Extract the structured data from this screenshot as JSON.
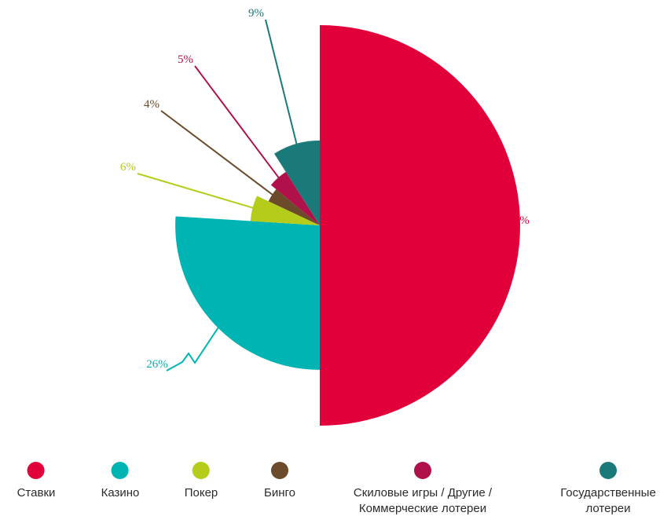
{
  "chart_data": {
    "type": "pie",
    "title": "",
    "series": [
      {
        "label": "Ставки",
        "value": 50,
        "value_label": "50%",
        "color": "#e2003b"
      },
      {
        "label": "Казино",
        "value": 26,
        "value_label": "26%",
        "color": "#00b4b4"
      },
      {
        "label": "Покер",
        "value": 6,
        "value_label": "6%",
        "color": "#b6cc1a"
      },
      {
        "label": "Бинго",
        "value": 4,
        "value_label": "4%",
        "color": "#6b4b2a"
      },
      {
        "label": "Скиловые игры / Другие / Коммерческие лотереи",
        "value": 5,
        "value_label": "5%",
        "color": "#b0114b"
      },
      {
        "label": "Государственные лотереи",
        "value": 9,
        "value_label": "9%",
        "color": "#1a7a7a"
      }
    ],
    "legend_position": "bottom"
  },
  "legend": [
    {
      "label": "Ставки",
      "color": "#e2003b"
    },
    {
      "label": "Казино",
      "color": "#00b4b4"
    },
    {
      "label": "Покер",
      "color": "#b6cc1a"
    },
    {
      "label": "Бинго",
      "color": "#6b4b2a"
    },
    {
      "label": "Скиловые игры / Другие / Коммерческие лотереи",
      "color": "#b0114b"
    },
    {
      "label": "Государственные лотереи",
      "color": "#1a7a7a"
    }
  ]
}
